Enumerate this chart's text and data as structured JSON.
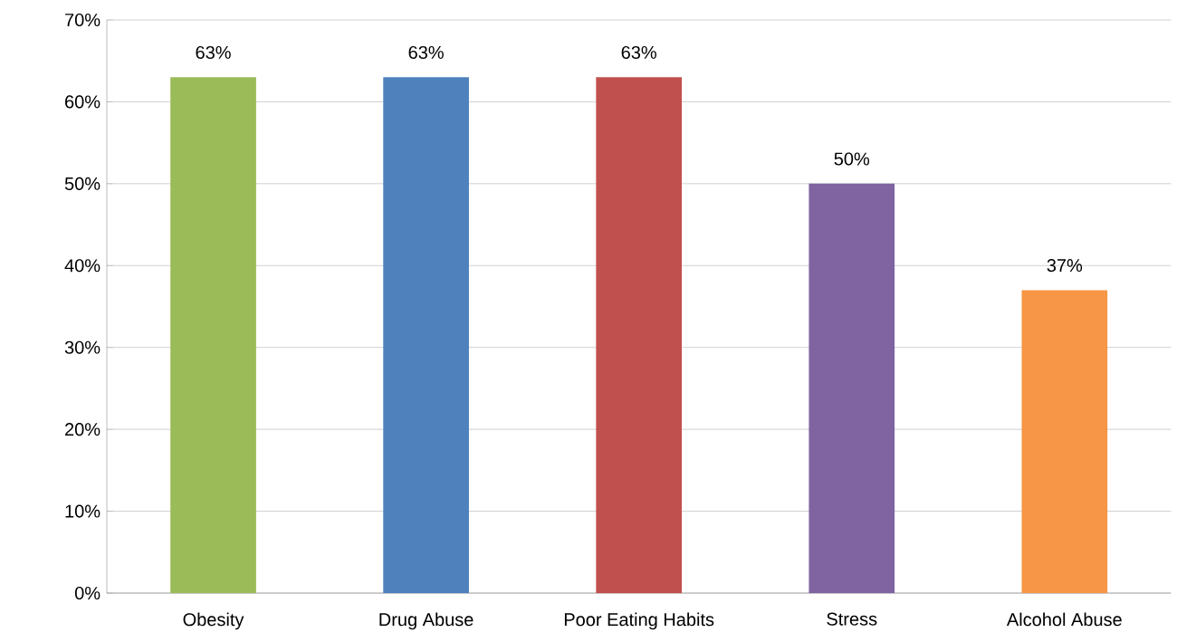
{
  "chart_data": {
    "type": "bar",
    "categories": [
      "Obesity",
      "Drug Abuse",
      "Poor Eating Habits",
      "Stress",
      "Alcohol Abuse"
    ],
    "values": [
      63,
      63,
      63,
      50,
      37
    ],
    "colors": [
      "#9bbb59",
      "#4f81bd",
      "#c0504d",
      "#8064a2",
      "#f79646"
    ],
    "value_labels": [
      "63%",
      "63%",
      "63%",
      "50%",
      "37%"
    ],
    "ylim": [
      0,
      70
    ],
    "yticks": [
      {
        "value": 0,
        "label": "0%"
      },
      {
        "value": 10,
        "label": "10%"
      },
      {
        "value": 20,
        "label": "20%"
      },
      {
        "value": 30,
        "label": "30%"
      },
      {
        "value": 40,
        "label": "40%"
      },
      {
        "value": 50,
        "label": "50%"
      },
      {
        "value": 60,
        "label": "60%"
      },
      {
        "value": 70,
        "label": "70%"
      }
    ],
    "grid": "y"
  }
}
